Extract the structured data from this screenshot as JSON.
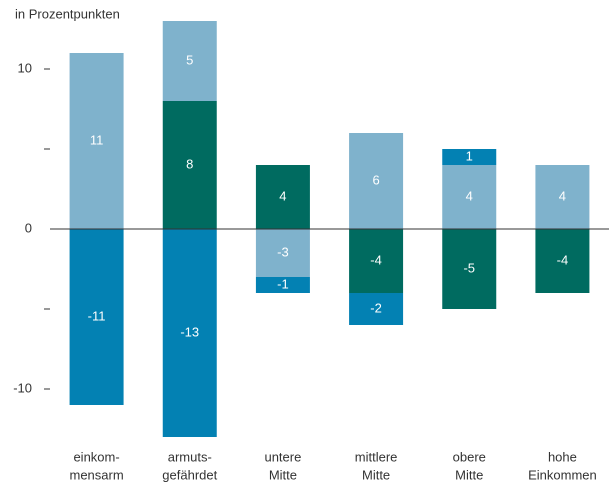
{
  "chart_data": {
    "type": "bar",
    "stacked": true,
    "subtitle": "in Prozentpunkten",
    "categories": [
      [
        "einkom-",
        "mensarm"
      ],
      [
        "armuts-",
        "gefährdet"
      ],
      [
        "untere",
        "Mitte"
      ],
      [
        "mittlere",
        "Mitte"
      ],
      [
        "obere",
        "Mitte"
      ],
      [
        "hohe",
        "Einkommen"
      ]
    ],
    "series": [
      {
        "color": "#7fb2cc",
        "values": [
          11,
          5,
          -3,
          6,
          4,
          4
        ]
      },
      {
        "color": "#006b60",
        "values": [
          null,
          8,
          4,
          -4,
          -5,
          -4
        ]
      },
      {
        "color": "#0381b3",
        "values": [
          -11,
          -13,
          -1,
          -2,
          1,
          null
        ]
      }
    ],
    "ylim": [
      -13,
      13.1
    ],
    "yticks": [
      -10,
      0,
      10
    ],
    "minor_yticks": [
      -5,
      5
    ]
  }
}
